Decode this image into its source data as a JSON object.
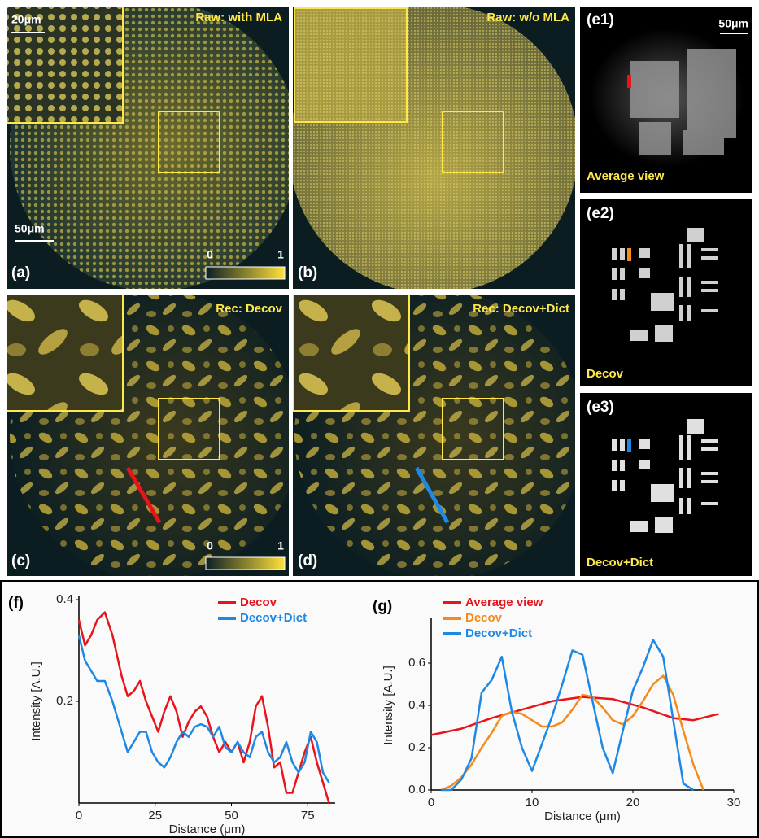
{
  "panels": [
    {
      "label": "(a)",
      "title": "Raw: with MLA",
      "inset_scale": "20μm",
      "scale": "50μm",
      "colorbar_ticks": [
        0,
        1
      ]
    },
    {
      "label": "(b)",
      "title": "Raw: w/o MLA"
    },
    {
      "label": "(c)",
      "title": "Rec: Decov",
      "colorbar_ticks": [
        0,
        1
      ]
    },
    {
      "label": "(d)",
      "title": "Rec: Decov+Dict"
    },
    {
      "label": "(e1)",
      "scale": "50μm",
      "caption": "Average view"
    },
    {
      "label": "(e2)",
      "caption": "Decov"
    },
    {
      "label": "(e3)",
      "caption": "Decov+Dict"
    }
  ],
  "chart_data": [
    {
      "type": "line",
      "title": "(f)",
      "xlabel": "Distance (μm)",
      "ylabel": "Intensity [A.U.]",
      "x": [
        0,
        2,
        4,
        6,
        8.5,
        11,
        14,
        16,
        18,
        20,
        22,
        24,
        26,
        28,
        30,
        32,
        34,
        36,
        38,
        40,
        42,
        44,
        46,
        48,
        50,
        52,
        54,
        56,
        58,
        60,
        62,
        64,
        66,
        68,
        70,
        72,
        74,
        76,
        78,
        80,
        82
      ],
      "xlim": [
        0,
        84
      ],
      "xticks": [
        0,
        25,
        50,
        75
      ],
      "ylim": [
        0,
        0.4
      ],
      "yticks": [
        0.2,
        0.4
      ],
      "series": [
        {
          "name": "Decov",
          "color": "#e8141b",
          "values": [
            0.36,
            0.31,
            0.33,
            0.36,
            0.375,
            0.33,
            0.25,
            0.21,
            0.22,
            0.24,
            0.2,
            0.17,
            0.14,
            0.18,
            0.21,
            0.18,
            0.13,
            0.16,
            0.18,
            0.19,
            0.17,
            0.13,
            0.1,
            0.12,
            0.1,
            0.12,
            0.08,
            0.12,
            0.19,
            0.21,
            0.15,
            0.07,
            0.08,
            0.02,
            0.02,
            0.06,
            0.1,
            0.13,
            0.08,
            0.04,
            0.0
          ]
        },
        {
          "name": "Decov+Dict",
          "color": "#1e88e5",
          "values": [
            0.33,
            0.28,
            0.26,
            0.24,
            0.24,
            0.2,
            0.14,
            0.1,
            0.12,
            0.14,
            0.14,
            0.1,
            0.08,
            0.07,
            0.09,
            0.12,
            0.14,
            0.13,
            0.15,
            0.155,
            0.15,
            0.13,
            0.15,
            0.11,
            0.1,
            0.12,
            0.1,
            0.09,
            0.13,
            0.14,
            0.1,
            0.08,
            0.09,
            0.12,
            0.08,
            0.06,
            0.08,
            0.14,
            0.12,
            0.06,
            0.04
          ]
        }
      ]
    },
    {
      "type": "line",
      "title": "(g)",
      "xlabel": "Distance (μm)",
      "ylabel": "Intensity [A.U.]",
      "xlim": [
        0,
        30
      ],
      "xticks": [
        0,
        10,
        20,
        30
      ],
      "ylim": [
        0,
        0.8
      ],
      "yticks": [
        {
          "value": 0,
          "label": "0.0"
        },
        0.2,
        0.4,
        0.6
      ],
      "series": [
        {
          "name": "Average view",
          "color": "#e8141b",
          "x": [
            0,
            3,
            6,
            9,
            12,
            15,
            18,
            21,
            24,
            26,
            28.5
          ],
          "values": [
            0.26,
            0.29,
            0.34,
            0.38,
            0.42,
            0.44,
            0.43,
            0.39,
            0.34,
            0.33,
            0.36
          ]
        },
        {
          "name": "Decov",
          "color": "#f28c1e",
          "x": [
            1,
            2,
            3,
            4,
            5,
            6,
            7,
            8,
            9,
            10,
            11,
            12,
            13,
            14,
            15,
            16,
            17,
            18,
            19,
            20,
            21,
            22,
            23,
            24,
            25,
            26,
            27
          ],
          "values": [
            0.0,
            0.02,
            0.06,
            0.12,
            0.2,
            0.27,
            0.35,
            0.37,
            0.36,
            0.33,
            0.3,
            0.3,
            0.32,
            0.38,
            0.45,
            0.44,
            0.39,
            0.33,
            0.31,
            0.35,
            0.42,
            0.5,
            0.54,
            0.45,
            0.28,
            0.12,
            0.0
          ]
        },
        {
          "name": "Decov+Dict",
          "color": "#1e88e5",
          "x": [
            1,
            2,
            3,
            4,
            5,
            6,
            7,
            8,
            9,
            10,
            11,
            12,
            13,
            14,
            15,
            16,
            17,
            18,
            19,
            20,
            21,
            22,
            23,
            24,
            25,
            26
          ],
          "values": [
            0.0,
            0.0,
            0.05,
            0.15,
            0.46,
            0.52,
            0.63,
            0.37,
            0.2,
            0.09,
            0.22,
            0.35,
            0.5,
            0.66,
            0.64,
            0.42,
            0.2,
            0.08,
            0.28,
            0.47,
            0.58,
            0.71,
            0.63,
            0.33,
            0.03,
            0.0
          ]
        }
      ]
    }
  ]
}
